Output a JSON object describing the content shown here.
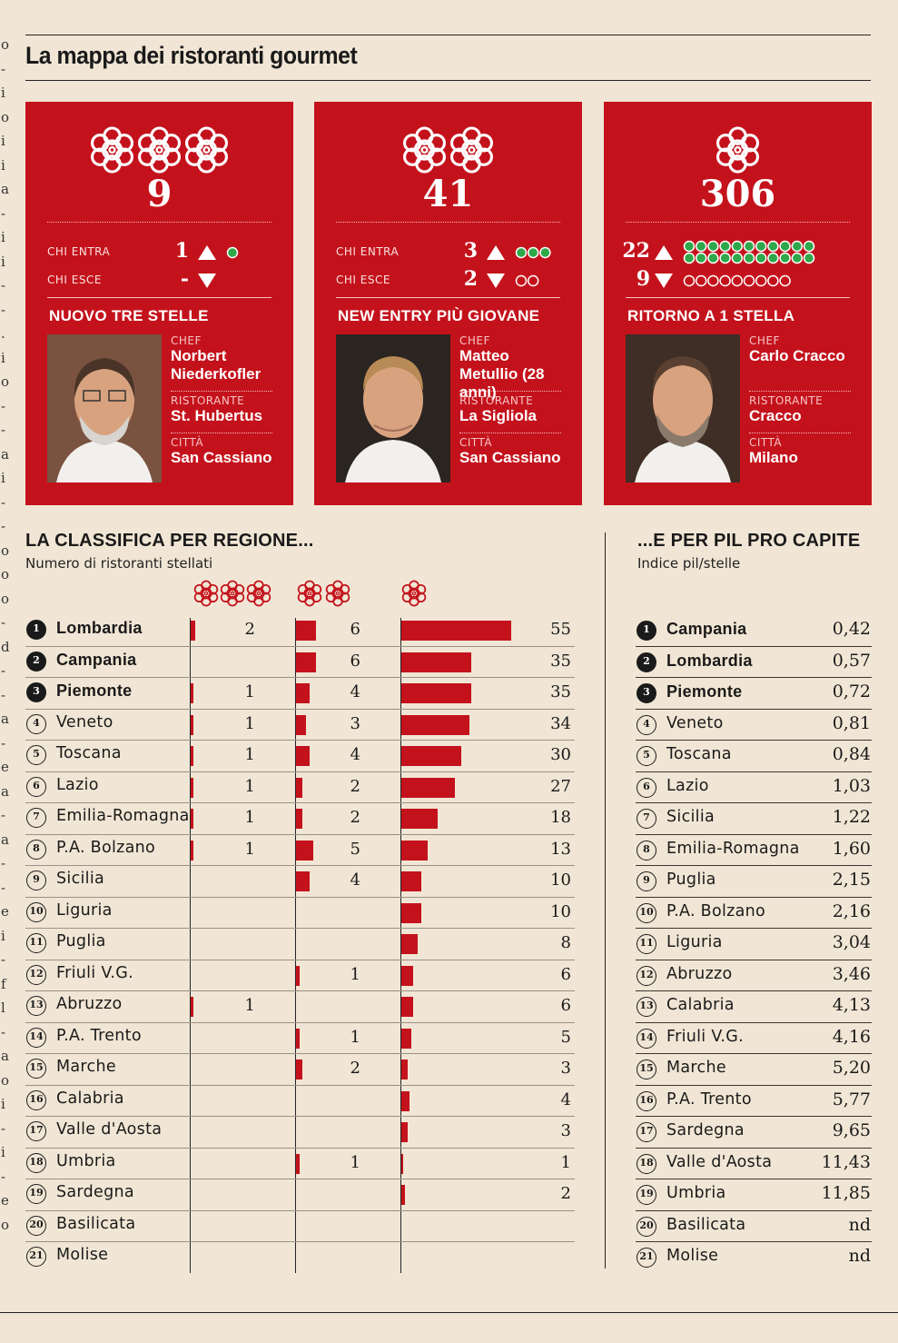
{
  "title": "La mappa dei ristoranti gourmet",
  "left_strip_letters": [
    "o",
    "-",
    "i",
    "o",
    "i",
    "i",
    "a",
    "-",
    "i",
    "i",
    "-",
    "-",
    ".",
    "i",
    "o",
    "-",
    "-",
    "a",
    "i",
    "-",
    "-",
    "o",
    "o",
    "o",
    "-",
    "d",
    "-",
    "-",
    "a",
    "-",
    "e",
    "a",
    "-",
    "a",
    "-",
    "-",
    "e",
    "i",
    "-",
    "f",
    "l",
    "-",
    "a",
    "o",
    "i",
    "-",
    "i",
    "-",
    "e",
    "o"
  ],
  "cards": [
    {
      "stars": 3,
      "total": "9",
      "enter_label": "CHI ENTRA",
      "enter_num": "1",
      "enter_dots": 1,
      "exit_label": "CHI ESCE",
      "exit_num": "-",
      "exit_dots": 0,
      "heading": "NUOVO TRE STELLE",
      "chef_label": "CHEF",
      "chef": "Norbert Niederkofler",
      "rist_label": "RISTORANTE",
      "ristorante": "St. Hubertus",
      "city_label": "CITTÀ",
      "citta": "San Cassiano"
    },
    {
      "stars": 2,
      "total": "41",
      "enter_label": "CHI ENTRA",
      "enter_num": "3",
      "enter_dots": 3,
      "exit_label": "CHI ESCE",
      "exit_num": "2",
      "exit_dots": 2,
      "heading": "NEW ENTRY PIÙ GIOVANE",
      "chef_label": "CHEF",
      "chef": "Matteo Metullio (28 anni)",
      "rist_label": "RISTORANTE",
      "ristorante": "La Sigliola",
      "city_label": "CITTÀ",
      "citta": "San Cassiano"
    },
    {
      "stars": 1,
      "total": "306",
      "enter_label": "",
      "enter_num": "22",
      "enter_dots": 22,
      "exit_label": "",
      "exit_num": "9",
      "exit_dots": 9,
      "heading": "RITORNO A 1 STELLA",
      "chef_label": "CHEF",
      "chef": "Carlo Cracco",
      "rist_label": "RISTORANTE",
      "ristorante": "Cracco",
      "city_label": "CITTÀ",
      "citta": "Milano"
    }
  ],
  "region": {
    "title": "LA CLASSIFICA PER REGIONE...",
    "subtitle": "Numero di ristoranti stellati"
  },
  "pil": {
    "title": "...E PER PIL PRO CAPITE",
    "subtitle": "Indice pil/stelle"
  },
  "colors": {
    "red": "#c4121c",
    "green": "#2ea84a",
    "bg": "#f1e6d5"
  },
  "chart_data": [
    {
      "type": "bar",
      "title": "LA CLASSIFICA PER REGIONE...",
      "subtitle": "Numero di ristoranti stellati",
      "categories": [
        "Lombardia",
        "Campania",
        "Piemonte",
        "Veneto",
        "Toscana",
        "Lazio",
        "Emilia-Romagna",
        "P.A. Bolzano",
        "Sicilia",
        "Liguria",
        "Puglia",
        "Friuli V.G.",
        "Abruzzo",
        "P.A. Trento",
        "Marche",
        "Calabria",
        "Valle d'Aosta",
        "Umbria",
        "Sardegna",
        "Basilicata",
        "Molise"
      ],
      "ranks": [
        "1",
        "2",
        "3",
        "4",
        "5",
        "6",
        "7",
        "8",
        "9",
        "10",
        "11",
        "12",
        "13",
        "14",
        "15",
        "16",
        "17",
        "18",
        "19",
        "20",
        "21"
      ],
      "series": [
        {
          "stars": 3,
          "values": [
            2,
            null,
            1,
            1,
            1,
            1,
            1,
            1,
            null,
            null,
            null,
            null,
            1,
            null,
            null,
            null,
            null,
            null,
            null,
            null,
            null
          ]
        },
        {
          "stars": 2,
          "values": [
            6,
            6,
            4,
            3,
            4,
            2,
            2,
            5,
            4,
            null,
            null,
            1,
            null,
            1,
            2,
            null,
            null,
            1,
            null,
            null,
            null
          ]
        },
        {
          "stars": 1,
          "values": [
            55,
            35,
            35,
            34,
            30,
            27,
            18,
            13,
            10,
            10,
            8,
            6,
            6,
            5,
            3,
            4,
            3,
            1,
            2,
            null,
            null
          ]
        }
      ]
    },
    {
      "type": "table",
      "title": "...E PER PIL PRO CAPITE",
      "subtitle": "Indice pil/stelle",
      "ranks": [
        "1",
        "2",
        "3",
        "4",
        "5",
        "6",
        "7",
        "8",
        "9",
        "10",
        "11",
        "12",
        "13",
        "14",
        "15",
        "16",
        "17",
        "18",
        "19",
        "20",
        "21"
      ],
      "categories": [
        "Campania",
        "Lombardia",
        "Piemonte",
        "Veneto",
        "Toscana",
        "Lazio",
        "Sicilia",
        "Emilia-Romagna",
        "Puglia",
        "P.A. Bolzano",
        "Liguria",
        "Abruzzo",
        "Calabria",
        "Friuli V.G.",
        "Marche",
        "P.A. Trento",
        "Sardegna",
        "Valle d'Aosta",
        "Umbria",
        "Basilicata",
        "Molise"
      ],
      "values": [
        "0,42",
        "0,57",
        "0,72",
        "0,81",
        "0,84",
        "1,03",
        "1,22",
        "1,60",
        "2,15",
        "2,16",
        "3,04",
        "3,46",
        "4,13",
        "4,16",
        "5,20",
        "5,77",
        "9,65",
        "11,43",
        "11,85",
        "nd",
        "nd"
      ]
    }
  ]
}
